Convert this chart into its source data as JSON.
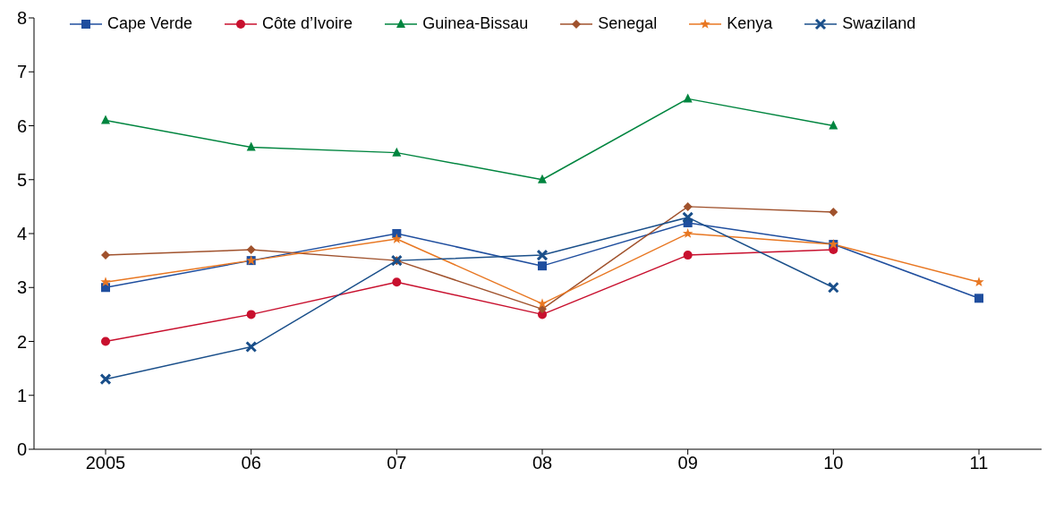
{
  "chart_data": {
    "type": "line",
    "categories": [
      "2005",
      "06",
      "07",
      "08",
      "09",
      "10",
      "11"
    ],
    "series": [
      {
        "name": "Cape Verde",
        "color": "#1f4e9e",
        "marker": "square",
        "values": [
          3.0,
          3.5,
          4.0,
          3.4,
          4.2,
          3.8,
          2.8
        ]
      },
      {
        "name": "Côte d’Ivoire",
        "color": "#c8102e",
        "marker": "circle",
        "values": [
          2.0,
          2.5,
          3.1,
          2.5,
          3.6,
          3.7,
          null
        ]
      },
      {
        "name": "Guinea-Bissau",
        "color": "#00853f",
        "marker": "triangle",
        "values": [
          6.1,
          5.6,
          5.5,
          5.0,
          6.5,
          6.0,
          null
        ]
      },
      {
        "name": "Senegal",
        "color": "#a0522d",
        "marker": "diamond",
        "values": [
          3.6,
          3.7,
          3.5,
          2.6,
          4.5,
          4.4,
          null
        ]
      },
      {
        "name": "Kenya",
        "color": "#e87722",
        "marker": "star",
        "values": [
          3.1,
          3.5,
          3.9,
          2.7,
          4.0,
          3.8,
          3.1
        ]
      },
      {
        "name": "Swaziland",
        "color": "#1a4f8a",
        "marker": "cross",
        "values": [
          1.3,
          1.9,
          3.5,
          3.6,
          4.3,
          3.0,
          null
        ]
      }
    ],
    "ylim": [
      0,
      8
    ],
    "yticks": [
      0,
      1,
      2,
      3,
      4,
      5,
      6,
      7,
      8
    ],
    "grid": false,
    "legend": "top left"
  }
}
